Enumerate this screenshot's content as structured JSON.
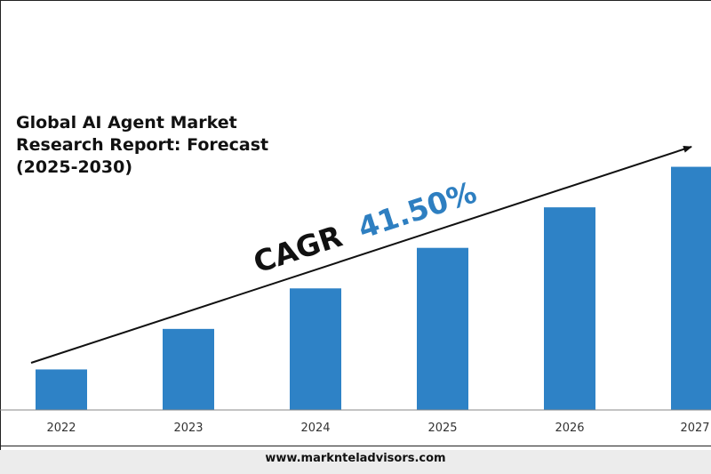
{
  "title_lines": [
    "Global AI Agent Market",
    "Research Report: Forecast",
    "(2025-2030)"
  ],
  "cagr": {
    "label": "CAGR",
    "value": "41.50%"
  },
  "footer": {
    "website": "www.marknteladvisors.com"
  },
  "colors": {
    "bar": "#2e82c6",
    "cagr_value": "#2e7fc1",
    "text": "#111111",
    "axis": "#888888"
  },
  "chart_data": {
    "type": "bar",
    "title": "Global AI Agent Market Research Report: Forecast (2025-2030)",
    "categories": [
      "2022",
      "2023",
      "2024",
      "2025",
      "2026",
      "2027"
    ],
    "values": [
      1,
      2,
      3,
      4,
      5,
      6
    ],
    "note": "",
    "ylim": [
      0,
      6.1
    ],
    "grid": false,
    "legend": "none",
    "annotation": "CAGR 41.50%"
  }
}
